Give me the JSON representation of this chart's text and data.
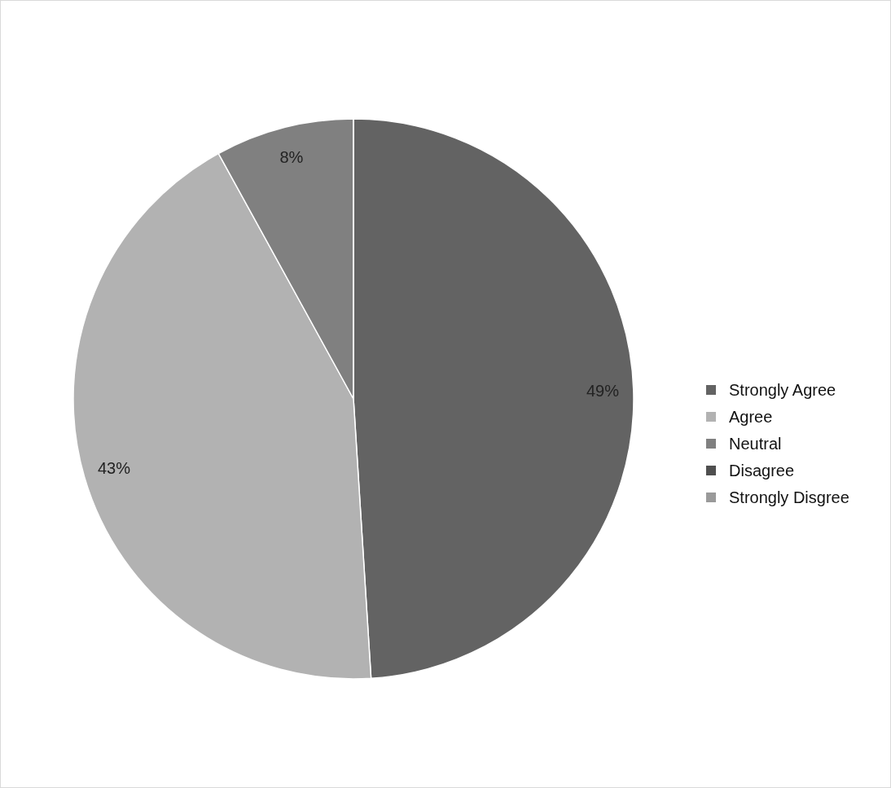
{
  "chart_data": {
    "type": "pie",
    "categories": [
      "Strongly Agree",
      "Agree",
      "Neutral",
      "Disagree",
      "Strongly Disgree"
    ],
    "values": [
      49,
      43,
      8,
      0,
      0
    ],
    "colors": [
      "#636363",
      "#b2b2b2",
      "#808080",
      "#4f4f4f",
      "#9a9a9a"
    ],
    "value_labels": [
      "49%",
      "43%",
      "8%",
      null,
      null
    ],
    "legend": "right"
  }
}
